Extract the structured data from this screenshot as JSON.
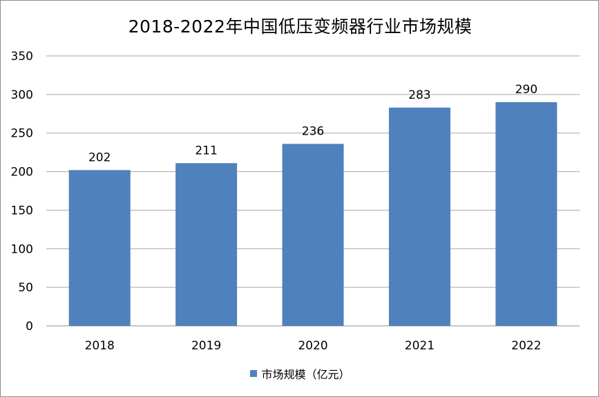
{
  "chart_data": {
    "type": "bar",
    "title": "2018-2022年中国低压变频器行业市场规模",
    "categories": [
      "2018",
      "2019",
      "2020",
      "2021",
      "2022"
    ],
    "series": [
      {
        "name": "市场规模（亿元）",
        "values": [
          202,
          211,
          236,
          283,
          290
        ],
        "color": "#4f81bd"
      }
    ],
    "data_labels": [
      "202",
      "211",
      "236",
      "283",
      "290"
    ],
    "ylim": [
      0,
      350
    ],
    "yticks": [
      0,
      50,
      100,
      150,
      200,
      250,
      300,
      350
    ],
    "ytick_labels": [
      "0",
      "50",
      "100",
      "150",
      "200",
      "250",
      "300",
      "350"
    ],
    "grid": true,
    "grid_color": "#a6a6a6",
    "legend": "bottom",
    "xlabel": "",
    "ylabel": ""
  }
}
